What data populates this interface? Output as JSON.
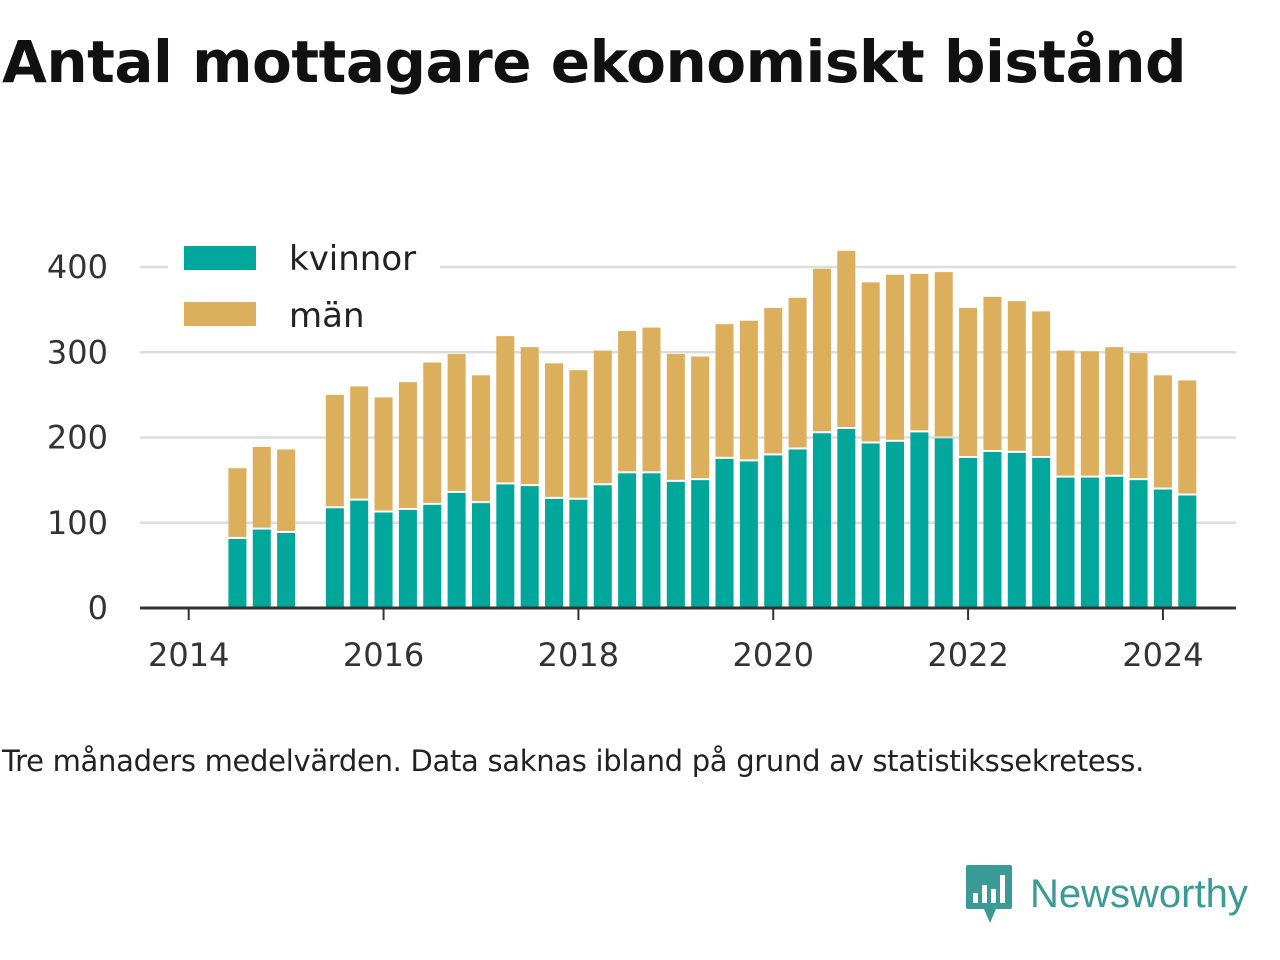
{
  "title": "Antal mottagare ekonomiskt bistånd",
  "note": "Tre månaders medelvärden. Data saknas ibland på grund av statistikssekretess.",
  "logo": {
    "text": "Newsworthy",
    "icon": "newsworthy-chart-bubble-icon"
  },
  "colors": {
    "kvinnor": "#00a79a",
    "man": "#dcaf5d",
    "grid": "#dddddd",
    "axis": "#333333"
  },
  "chart_data": {
    "type": "bar",
    "stacked": true,
    "title": "Antal mottagare ekonomiskt bistånd",
    "xlabel": "",
    "ylabel": "",
    "ylim": [
      0,
      420
    ],
    "yticks": [
      0,
      100,
      200,
      300,
      400
    ],
    "xticks": [
      2014,
      2016,
      2018,
      2020,
      2022,
      2024
    ],
    "xlim": [
      2013.5,
      2024.75
    ],
    "grid": true,
    "legend_position": "top-left",
    "x": [
      2014.5,
      2014.75,
      2015.0,
      2015.5,
      2015.75,
      2016.0,
      2016.25,
      2016.5,
      2016.75,
      2017.0,
      2017.25,
      2017.5,
      2017.75,
      2018.0,
      2018.25,
      2018.5,
      2018.75,
      2019.0,
      2019.25,
      2019.5,
      2019.75,
      2020.0,
      2020.25,
      2020.5,
      2020.75,
      2021.0,
      2021.25,
      2021.5,
      2021.75,
      2022.0,
      2022.25,
      2022.5,
      2022.75,
      2023.0,
      2023.25,
      2023.5,
      2023.75,
      2024.0,
      2024.25
    ],
    "series": [
      {
        "name": "kvinnor",
        "values": [
          81,
          92,
          88,
          117,
          126,
          112,
          115,
          121,
          135,
          123,
          145,
          143,
          128,
          127,
          144,
          158,
          158,
          148,
          150,
          175,
          172,
          179,
          186,
          205,
          210,
          193,
          195,
          206,
          199,
          176,
          183,
          182,
          176,
          153,
          153,
          154,
          150,
          139,
          132
        ]
      },
      {
        "name": "män",
        "values": [
          83,
          97,
          98,
          133,
          134,
          135,
          150,
          167,
          163,
          150,
          174,
          163,
          159,
          152,
          158,
          167,
          171,
          150,
          145,
          158,
          165,
          173,
          178,
          193,
          209,
          189,
          196,
          186,
          195,
          176,
          182,
          178,
          172,
          149,
          148,
          152,
          149,
          134,
          135
        ]
      }
    ]
  }
}
